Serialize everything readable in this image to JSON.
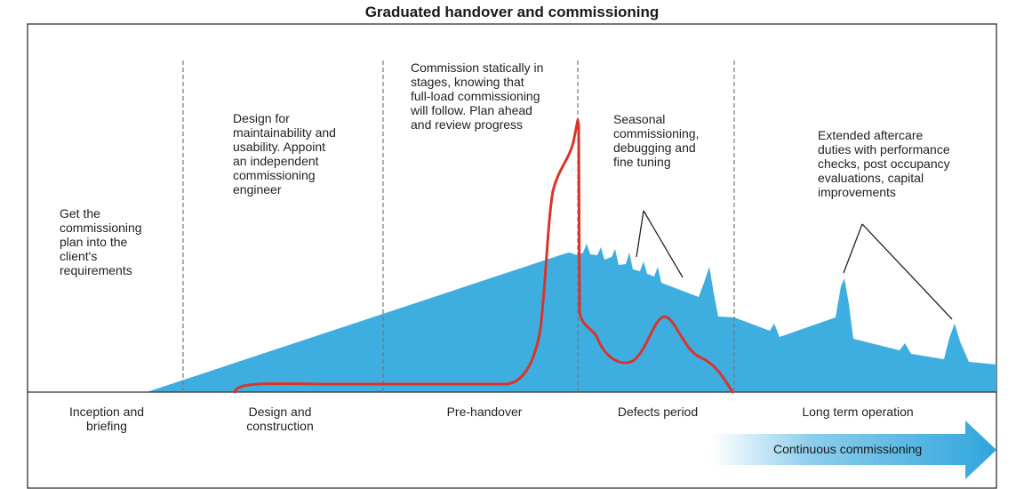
{
  "title": "Graduated handover and commissioning",
  "notes": {
    "briefing": "Get the\ncommissioning\nplan into the\nclient's\nrequirements",
    "design": "Design for\nmaintainability and\nusability.  Appoint\nan independent\ncommissioning\nengineer",
    "prehandover": "Commission statically in\nstages, knowing that\nfull-load commissioning\nwill follow. Plan ahead\nand review progress",
    "defects": "Seasonal\ncommissioning,\ndebugging and\nfine tuning",
    "longterm": "Extended aftercare\nduties with performance\nchecks, post occupancy\nevaluations, capital\nimprovements"
  },
  "phases": [
    "Inception and\nbriefing",
    "Design and\nconstruction",
    "Pre-handover",
    "Defects period",
    "Long term operation"
  ],
  "arrow_label": "Continuous commissioning",
  "colors": {
    "area": "#3eaee0",
    "curve": "#d9342b",
    "arrow": "#2fa5dc",
    "divider": "#777777",
    "frame": "#333333"
  }
}
